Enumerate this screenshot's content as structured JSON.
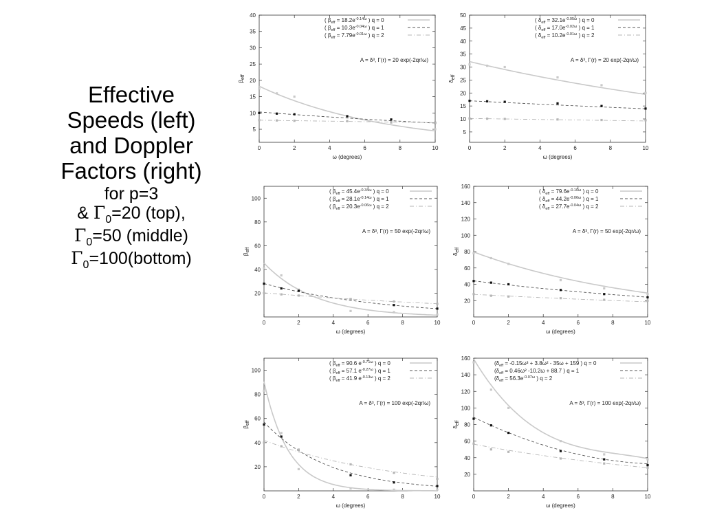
{
  "title": {
    "line1": "Effective",
    "line2": "Speeds (left)",
    "line3": "and Doppler",
    "line4": "Factors (right)",
    "line5": "for p=3",
    "line6_pre": "& ",
    "line6_post": "=20 (top),",
    "line7_post": "=50 (middle)",
    "line8_post": "=100(bottom)",
    "gamma_symbol": "Γ",
    "gamma_sub": "0"
  },
  "colors": {
    "q0": "#c9c9c9",
    "q1": "#555555",
    "q2": "#b5b5b5"
  },
  "chart_data": [
    {
      "type": "scatter",
      "panel": "top-left",
      "xlabel": "ω  (degrees)",
      "ylabel": "β_eff",
      "xlim": [
        0,
        10
      ],
      "ylim": [
        1,
        40
      ],
      "xticks": [
        0,
        2,
        4,
        6,
        8,
        10
      ],
      "yticks": [
        5,
        10,
        15,
        20,
        25,
        30,
        35,
        40
      ],
      "annotation": "A = δ³,   Γ(r) = 20 exp(-2qr/ω)",
      "legend": [
        {
          "label": "( β_eff = 18.2e^-0.14ω )   q = 0",
          "a": 18.2,
          "b": -0.14
        },
        {
          "label": "( β_eff = 10.3e^-0.04ω )   q = 1",
          "a": 10.3,
          "b": -0.04
        },
        {
          "label": "( β_eff = 7.79e^-0.01ω )   q = 2",
          "a": 7.79,
          "b": -0.01
        }
      ],
      "x": [
        0,
        1,
        2,
        5,
        7.5,
        10
      ],
      "series": [
        {
          "q": 0,
          "values": [
            17.5,
            16,
            15,
            9,
            7,
            5
          ]
        },
        {
          "q": 1,
          "values": [
            10,
            9.8,
            9.6,
            9,
            8,
            7
          ]
        },
        {
          "q": 2,
          "values": [
            7.8,
            7.7,
            7.6,
            7.5,
            7.2,
            7
          ]
        }
      ]
    },
    {
      "type": "scatter",
      "panel": "top-right",
      "xlabel": "ω  (degrees)",
      "ylabel": "δ_eff",
      "xlim": [
        0,
        10
      ],
      "ylim": [
        1,
        50
      ],
      "xticks": [
        0,
        2,
        4,
        6,
        8,
        10
      ],
      "yticks": [
        5,
        10,
        15,
        20,
        25,
        30,
        35,
        40,
        45,
        50
      ],
      "annotation": "A = δ³,   Γ(r) = 20 exp(-2qr/ω)",
      "legend": [
        {
          "label": "( δ_eff = 32.1e^-0.05ω )   q = 0",
          "a": 32.1,
          "b": -0.05
        },
        {
          "label": "( δ_eff = 17.0e^-0.02ω )   q = 1",
          "a": 17.0,
          "b": -0.02
        },
        {
          "label": "( δ_eff = 10.2e^-0.01ω )   q = 2",
          "a": 10.2,
          "b": -0.01
        }
      ],
      "x": [
        0,
        1,
        2,
        5,
        7.5,
        10
      ],
      "series": [
        {
          "q": 0,
          "values": [
            31,
            30.5,
            30,
            26,
            23,
            20
          ]
        },
        {
          "q": 1,
          "values": [
            17,
            16.8,
            16.6,
            16,
            15,
            14
          ]
        },
        {
          "q": 2,
          "values": [
            10.2,
            10.1,
            10,
            9.8,
            9.6,
            9.5
          ]
        }
      ]
    },
    {
      "type": "scatter",
      "panel": "middle-left",
      "xlabel": "ω  (degrees)",
      "ylabel": "β_eff",
      "xlim": [
        0,
        10
      ],
      "ylim": [
        0,
        110
      ],
      "xticks": [
        0,
        2,
        4,
        6,
        8,
        10
      ],
      "yticks": [
        20,
        40,
        60,
        80,
        100
      ],
      "annotation": "A = δ³,   Γ(r) = 50 exp(-2qr/ω)",
      "legend": [
        {
          "label": "( β_eff = 45.4e^-0.34ω )   q = 0",
          "a": 45.4,
          "b": -0.34
        },
        {
          "label": "( β_eff = 28.1e^-0.14ω )   q = 1",
          "a": 28.1,
          "b": -0.14
        },
        {
          "label": "( β_eff = 20.3e^-0.06ω )   q = 2",
          "a": 20.3,
          "b": -0.06
        }
      ],
      "x": [
        0,
        1,
        2,
        5,
        7.5,
        10
      ],
      "series": [
        {
          "q": 0,
          "values": [
            41,
            35,
            23,
            5,
            4,
            2
          ]
        },
        {
          "q": 1,
          "values": [
            28,
            24,
            22,
            15,
            10,
            7
          ]
        },
        {
          "q": 2,
          "values": [
            20,
            19,
            18,
            15,
            13,
            11
          ]
        }
      ]
    },
    {
      "type": "scatter",
      "panel": "middle-right",
      "xlabel": "ω  (degrees)",
      "ylabel": "δ_eff",
      "xlim": [
        0,
        10
      ],
      "ylim": [
        0,
        160
      ],
      "xticks": [
        0,
        2,
        4,
        6,
        8,
        10
      ],
      "yticks": [
        20,
        40,
        60,
        80,
        100,
        120,
        140,
        160
      ],
      "annotation": "A = δ³,   Γ(r) = 50 exp(-2qr/ω)",
      "legend": [
        {
          "label": "( δ_eff = 79.6e^-0.10ω )   q = 0",
          "a": 79.6,
          "b": -0.1
        },
        {
          "label": "( δ_eff = 44.2e^-0.06ω )   q = 1",
          "a": 44.2,
          "b": -0.06
        },
        {
          "label": "( δ_eff = 27.7e^-0.04ω )   q = 2",
          "a": 27.7,
          "b": -0.04
        }
      ],
      "x": [
        0,
        1,
        2,
        5,
        7.5,
        10
      ],
      "series": [
        {
          "q": 0,
          "values": [
            78,
            72,
            65,
            45,
            35,
            28
          ]
        },
        {
          "q": 1,
          "values": [
            44,
            42,
            40,
            33,
            28,
            24
          ]
        },
        {
          "q": 2,
          "values": [
            28,
            26,
            25,
            23,
            21,
            20
          ]
        }
      ]
    },
    {
      "type": "scatter",
      "panel": "bottom-left",
      "xlabel": "ω  (degrees)",
      "ylabel": "β_eff",
      "xlim": [
        0,
        10
      ],
      "ylim": [
        0,
        110
      ],
      "xticks": [
        0,
        2,
        4,
        6,
        8,
        10
      ],
      "yticks": [
        20,
        40,
        60,
        80,
        100
      ],
      "annotation": "A = δ³,   Γ(r) = 100 exp(-2qr/ω)",
      "legend": [
        {
          "label": "( β_eff = 90.6 e^-0.71ω )   q = 0",
          "a": 90.6,
          "b": -0.71
        },
        {
          "label": "( β_eff = 57.1 e^-0.27ω )   q = 1",
          "a": 57.1,
          "b": -0.27
        },
        {
          "label": "( β_eff = 41.9 e^-0.13ω )   q = 2",
          "a": 41.9,
          "b": -0.13
        }
      ],
      "x": [
        0,
        1,
        2,
        5,
        7.5,
        10
      ],
      "series": [
        {
          "q": 0,
          "values": [
            83,
            48,
            18,
            2,
            1,
            1
          ]
        },
        {
          "q": 1,
          "values": [
            55,
            45,
            34,
            13,
            7,
            4
          ]
        },
        {
          "q": 2,
          "values": [
            40,
            37,
            34,
            22,
            15,
            10
          ]
        }
      ]
    },
    {
      "type": "scatter",
      "panel": "bottom-right",
      "xlabel": "ω  (degrees)",
      "ylabel": "δ_eff",
      "xlim": [
        0,
        10
      ],
      "ylim": [
        0,
        160
      ],
      "xticks": [
        0,
        2,
        4,
        6,
        8,
        10
      ],
      "yticks": [
        20,
        40,
        60,
        80,
        100,
        120,
        140,
        160
      ],
      "annotation": "A = δ³,   Γ(r) = 100 exp(-2qr/ω)",
      "legend": [
        {
          "label": "(δ_eff = -0.15ω³ + 3.8ω² - 35ω + 159 ) q = 0",
          "poly": [
            159,
            -35,
            3.8,
            -0.15
          ]
        },
        {
          "label": "(δ_eff = 0.46ω² -10.2ω + 88.7 )            q = 1",
          "poly": [
            88.7,
            -10.2,
            0.46
          ]
        },
        {
          "label": "(δ_eff = 56.3e^-0.07ω )                         q = 2",
          "a": 56.3,
          "b": -0.07
        }
      ],
      "x": [
        0,
        1,
        2,
        5,
        7.5,
        10
      ],
      "series": [
        {
          "q": 0,
          "values": [
            155,
            122,
            100,
            60,
            44,
            38
          ]
        },
        {
          "q": 1,
          "values": [
            87,
            79,
            70,
            48,
            38,
            31
          ]
        },
        {
          "q": 2,
          "values": [
            57,
            50,
            47,
            39,
            33,
            28
          ]
        }
      ]
    }
  ]
}
